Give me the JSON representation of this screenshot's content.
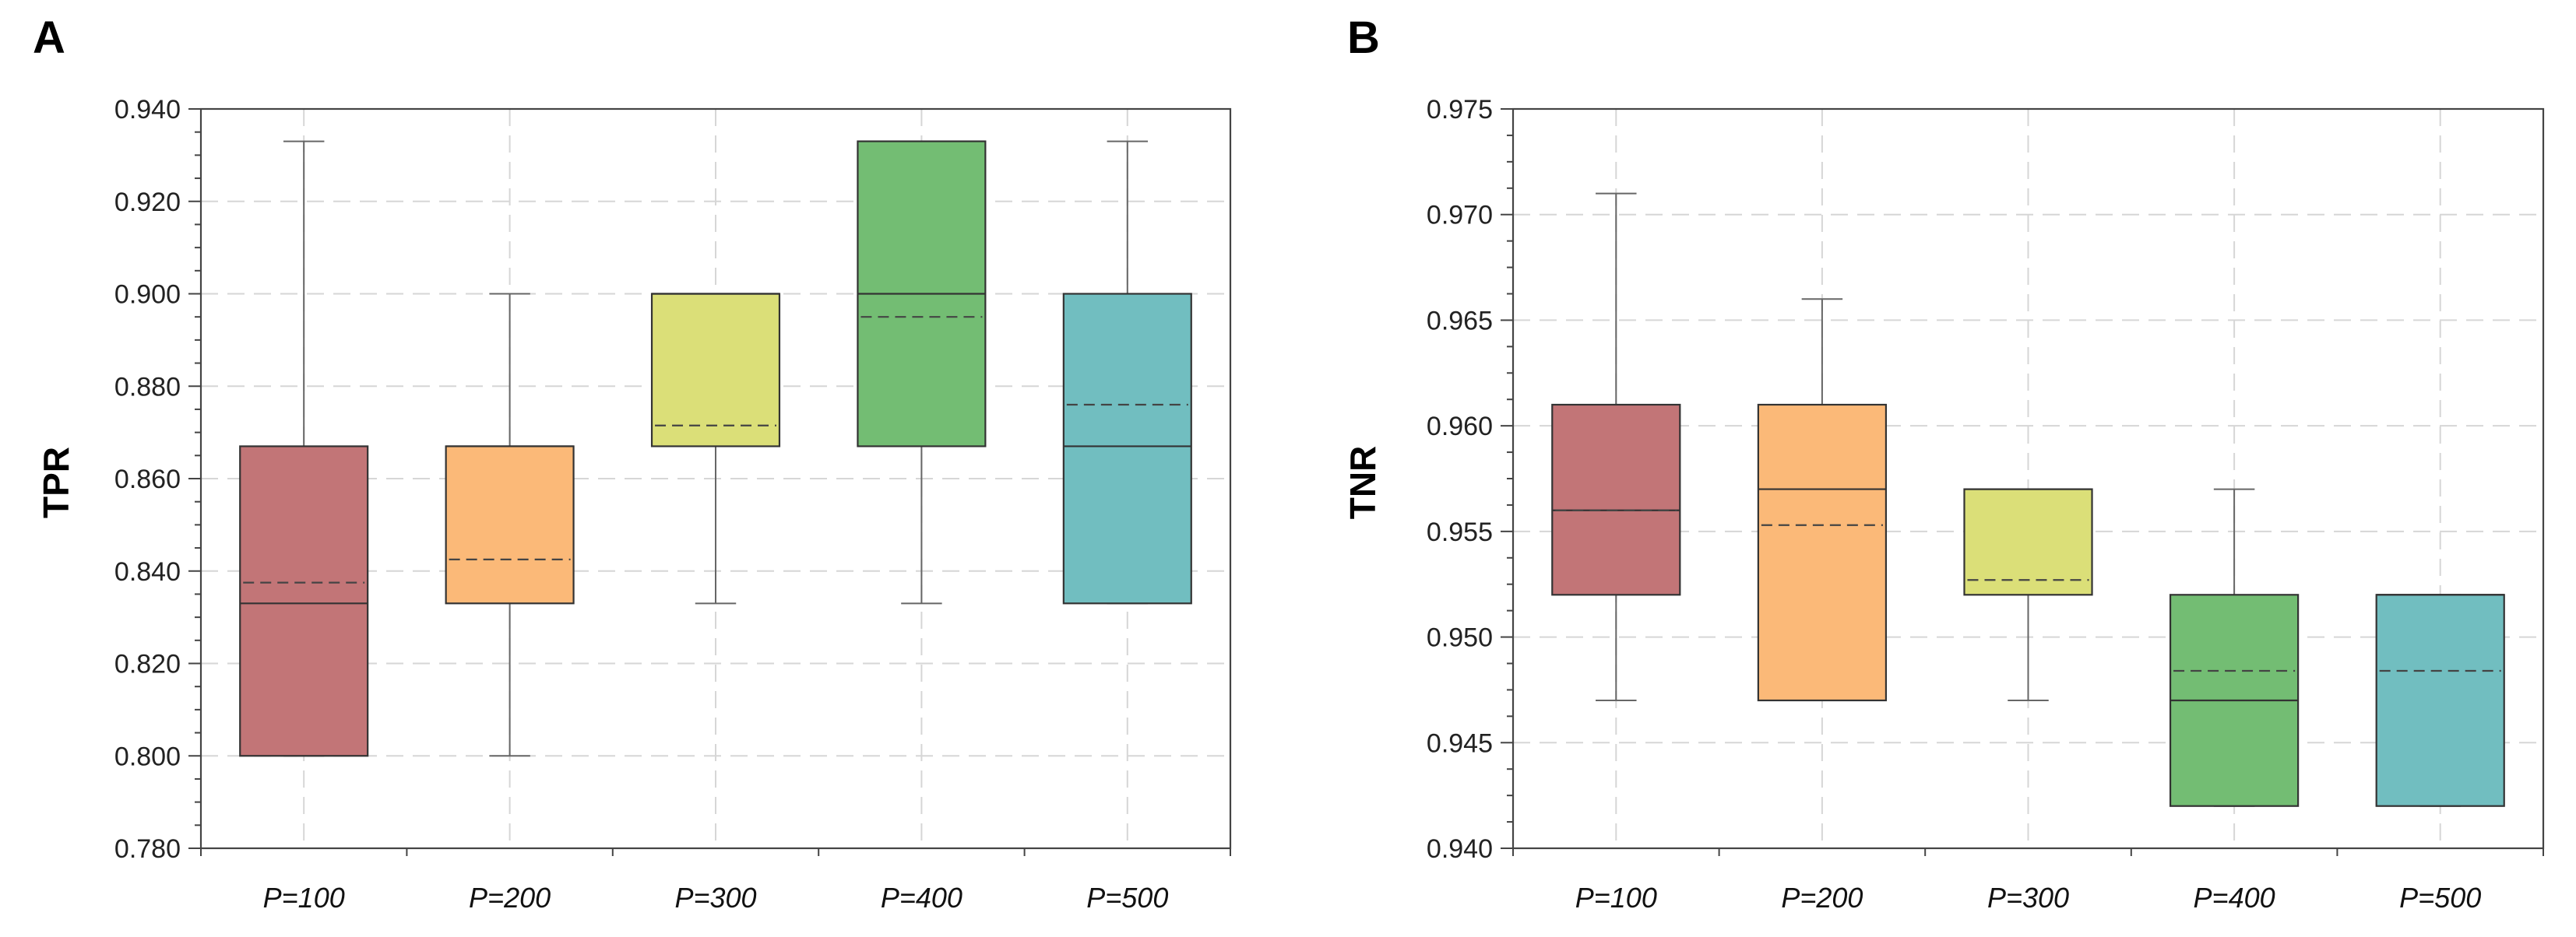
{
  "chart_data": [
    {
      "panel": "A",
      "type": "box",
      "ylabel": "TPR",
      "xlabel": "",
      "ylim": [
        0.78,
        0.94
      ],
      "yticks": [
        "0.780",
        "0.800",
        "0.820",
        "0.840",
        "0.860",
        "0.880",
        "0.900",
        "0.920",
        "0.940"
      ],
      "grid": true,
      "categories": [
        "P=100",
        "P=200",
        "P=300",
        "P=400",
        "P=500"
      ],
      "colors": [
        "#c27577",
        "#fbb978",
        "#dbdf78",
        "#73bd73",
        "#71bec0"
      ],
      "boxes": [
        {
          "whislo": 0.8,
          "q1": 0.8,
          "med": 0.833,
          "mean": 0.8375,
          "q3": 0.867,
          "whishi": 0.933
        },
        {
          "whislo": 0.8,
          "q1": 0.833,
          "med": 0.867,
          "mean": 0.8425,
          "q3": 0.867,
          "whishi": 0.9
        },
        {
          "whislo": 0.833,
          "q1": 0.867,
          "med": 0.9,
          "mean": 0.8715,
          "q3": 0.9,
          "whishi": 0.9
        },
        {
          "whislo": 0.833,
          "q1": 0.867,
          "med": 0.9,
          "mean": 0.895,
          "q3": 0.933,
          "whishi": 0.933
        },
        {
          "whislo": 0.833,
          "q1": 0.833,
          "med": 0.867,
          "mean": 0.876,
          "q3": 0.9,
          "whishi": 0.933
        }
      ]
    },
    {
      "panel": "B",
      "type": "box",
      "ylabel": "TNR",
      "xlabel": "",
      "ylim": [
        0.94,
        0.975
      ],
      "yticks": [
        "0.940",
        "0.945",
        "0.950",
        "0.955",
        "0.960",
        "0.965",
        "0.970",
        "0.975"
      ],
      "grid": true,
      "categories": [
        "P=100",
        "P=200",
        "P=300",
        "P=400",
        "P=500"
      ],
      "colors": [
        "#c27577",
        "#fbb978",
        "#dbdf78",
        "#73bd73",
        "#71bec0"
      ],
      "boxes": [
        {
          "whislo": 0.947,
          "q1": 0.952,
          "med": 0.956,
          "mean": 0.956,
          "q3": 0.961,
          "whishi": 0.971
        },
        {
          "whislo": 0.947,
          "q1": 0.947,
          "med": 0.957,
          "mean": 0.9553,
          "q3": 0.961,
          "whishi": 0.966
        },
        {
          "whislo": 0.947,
          "q1": 0.952,
          "med": 0.957,
          "mean": 0.9527,
          "q3": 0.957,
          "whishi": 0.957
        },
        {
          "whislo": 0.942,
          "q1": 0.942,
          "med": 0.947,
          "mean": 0.9484,
          "q3": 0.952,
          "whishi": 0.957
        },
        {
          "whislo": 0.942,
          "q1": 0.942,
          "med": 0.952,
          "mean": 0.9484,
          "q3": 0.952,
          "whishi": 0.952
        }
      ]
    }
  ]
}
